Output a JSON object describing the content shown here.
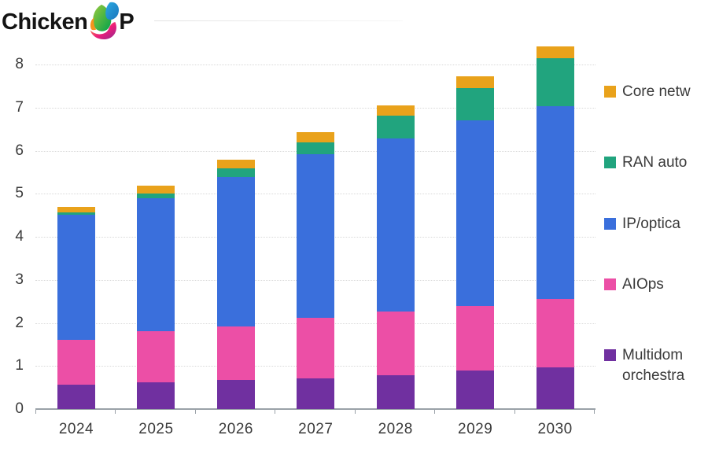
{
  "logo": {
    "left": "Chicken",
    "right": "P",
    "icon": "colorful-bird-swoosh"
  },
  "chart_data": {
    "type": "bar",
    "stacked": true,
    "title": "",
    "xlabel": "",
    "ylabel": "",
    "categories": [
      "2024",
      "2025",
      "2026",
      "2027",
      "2028",
      "2029",
      "2030"
    ],
    "series": [
      {
        "name": "Multidom orchestra",
        "legend_lines": [
          "Multidom",
          "orchestra"
        ],
        "color": "#7030A0",
        "values": [
          0.57,
          0.62,
          0.67,
          0.72,
          0.79,
          0.9,
          0.97
        ]
      },
      {
        "name": "AIOps",
        "legend_lines": [
          "AIOps"
        ],
        "color": "#EC4FA6",
        "values": [
          1.04,
          1.18,
          1.25,
          1.4,
          1.47,
          1.5,
          1.59
        ]
      },
      {
        "name": "IP/optica",
        "legend_lines": [
          "IP/optica"
        ],
        "color": "#3A6FDC",
        "values": [
          2.9,
          3.1,
          3.47,
          3.79,
          4.02,
          4.3,
          4.47
        ]
      },
      {
        "name": "RAN auto",
        "legend_lines": [
          "RAN auto"
        ],
        "color": "#21A47E",
        "values": [
          0.06,
          0.1,
          0.2,
          0.29,
          0.53,
          0.75,
          1.11
        ]
      },
      {
        "name": "Core netw",
        "legend_lines": [
          "Core netw"
        ],
        "color": "#E9A21B",
        "values": [
          0.12,
          0.18,
          0.2,
          0.23,
          0.24,
          0.28,
          0.28
        ]
      }
    ],
    "totals": [
      4.69,
      5.18,
      5.79,
      6.43,
      7.05,
      7.73,
      8.42
    ],
    "yticks": [
      0,
      1,
      2,
      3,
      4,
      5,
      6,
      7,
      8
    ],
    "ylim": [
      0,
      8.6
    ],
    "grid": "horizontal-dotted",
    "legend_position": "right",
    "legend_order_top_to_bottom": [
      "Core netw",
      "RAN auto",
      "IP/optica",
      "AIOps",
      "Multidom orchestra"
    ]
  }
}
